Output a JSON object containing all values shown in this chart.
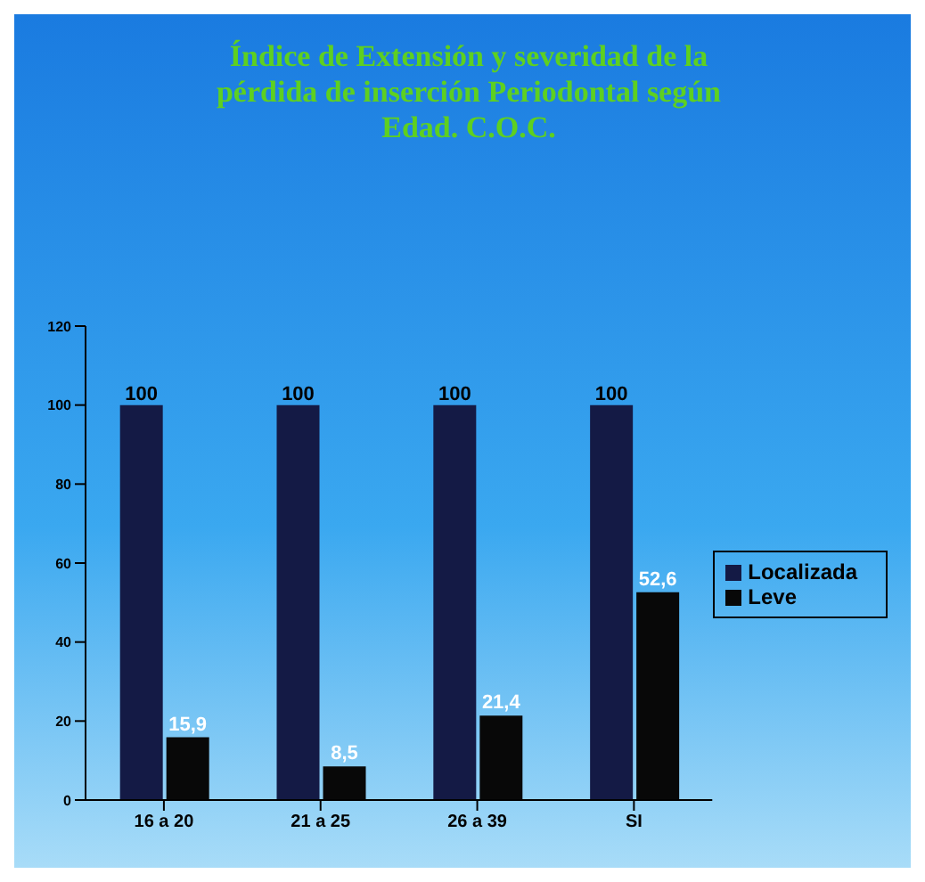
{
  "chart_data": {
    "type": "bar",
    "title": "Índice de Extensión  y severidad de la pérdida de inserción Periodontal según Edad. C.O.C.",
    "categories": [
      "16 a 20",
      "21 a 25",
      "26 a 39",
      "SI"
    ],
    "series": [
      {
        "name": "Localizada",
        "color": "#141a45",
        "values": [
          100,
          100,
          100,
          100
        ],
        "value_labels": [
          "100",
          "100",
          "100",
          "100"
        ]
      },
      {
        "name": "Leve",
        "color": "#080808",
        "values": [
          15.9,
          8.5,
          21.4,
          52.6
        ],
        "value_labels": [
          "15,9",
          "8,5",
          "21,4",
          "52,6"
        ]
      }
    ],
    "ylim": [
      0,
      120
    ],
    "yticks": [
      0,
      20,
      40,
      60,
      80,
      100,
      120
    ],
    "grid": false,
    "legend": "right"
  }
}
